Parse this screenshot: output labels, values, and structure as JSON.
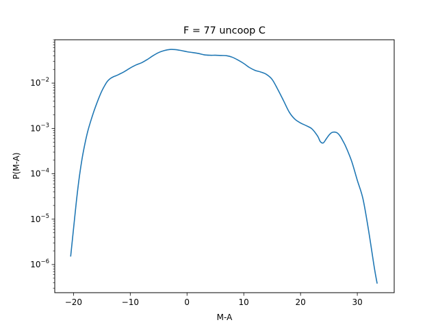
{
  "chart_data": {
    "type": "line",
    "title": "F = 77 uncoop C",
    "xlabel": "M-A",
    "ylabel": "P(M-A)",
    "yscale": "log",
    "xlim": [
      -23.3,
      36.5
    ],
    "ylim": [
      2.4e-07,
      0.09
    ],
    "grid": false,
    "legend": "none",
    "x_ticks": [
      -20,
      -10,
      0,
      10,
      20,
      30
    ],
    "x_tick_labels": [
      "−20",
      "−10",
      "0",
      "10",
      "20",
      "30"
    ],
    "y_ticks": [
      {
        "value": 1e-06,
        "base": "10",
        "exp": "−6"
      },
      {
        "value": 1e-05,
        "base": "10",
        "exp": "−5"
      },
      {
        "value": 0.0001,
        "base": "10",
        "exp": "−4"
      },
      {
        "value": 0.001,
        "base": "10",
        "exp": "−3"
      },
      {
        "value": 0.01,
        "base": "10",
        "exp": "−2"
      }
    ],
    "series": [
      {
        "color": "#1f77b4",
        "x": [
          -20.5,
          -20,
          -19.5,
          -19,
          -18.5,
          -18,
          -17.5,
          -17,
          -16.5,
          -16,
          -15.5,
          -15,
          -14.5,
          -14,
          -13.5,
          -13,
          -12.5,
          -12,
          -11,
          -10,
          -9,
          -8,
          -7,
          -6,
          -5,
          -4,
          -3,
          -2,
          -1,
          0,
          1,
          2,
          3,
          4,
          5,
          6,
          7,
          8,
          9,
          10,
          11,
          12,
          13,
          14,
          15,
          16,
          17,
          18,
          19,
          20,
          21,
          22,
          23,
          23.5,
          24,
          24.5,
          25,
          25.5,
          26,
          26.5,
          27,
          27.5,
          28,
          29,
          30,
          31,
          32,
          33,
          33.5
        ],
        "y": [
          1.5e-06,
          6e-06,
          2.4e-05,
          8e-05,
          0.00021,
          0.00045,
          0.00085,
          0.0014,
          0.0022,
          0.0033,
          0.0048,
          0.0067,
          0.0088,
          0.011,
          0.0126,
          0.0137,
          0.0145,
          0.0155,
          0.018,
          0.0215,
          0.025,
          0.028,
          0.033,
          0.04,
          0.047,
          0.052,
          0.055,
          0.0545,
          0.052,
          0.049,
          0.047,
          0.045,
          0.042,
          0.041,
          0.041,
          0.0405,
          0.04,
          0.037,
          0.032,
          0.027,
          0.022,
          0.019,
          0.0175,
          0.0155,
          0.012,
          0.0072,
          0.0041,
          0.0023,
          0.0016,
          0.00132,
          0.00115,
          0.00098,
          0.00068,
          0.00051,
          0.00048,
          0.00058,
          0.00071,
          0.00081,
          0.00083,
          0.00079,
          0.00067,
          0.00052,
          0.00039,
          0.00019,
          7.2e-05,
          2.8e-05,
          5.5e-06,
          8.5e-07,
          3.8e-07
        ]
      }
    ]
  }
}
